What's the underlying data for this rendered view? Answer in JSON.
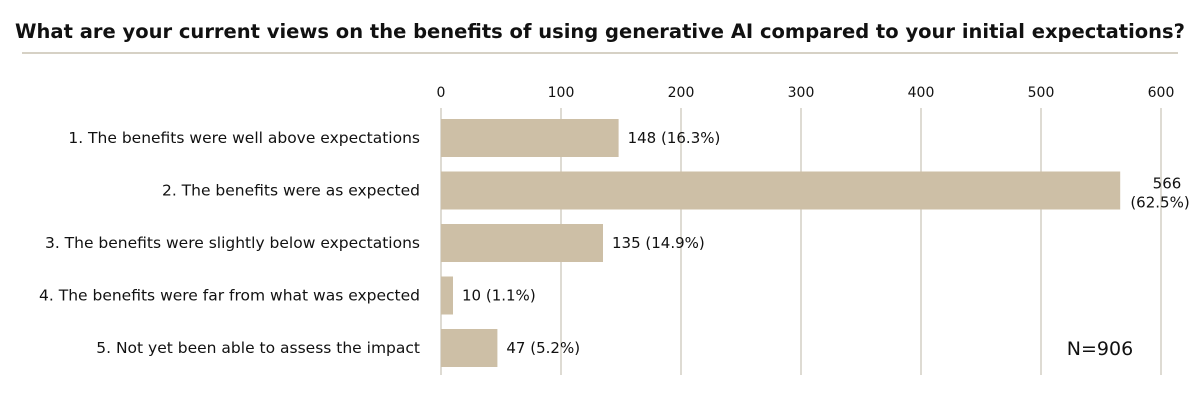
{
  "chart_data": {
    "type": "bar",
    "orientation": "horizontal",
    "title": "What are your current views on the benefits of using generative AI compared to your initial expectations?",
    "categories": [
      "1. The benefits were well above expectations",
      "2. The benefits were as expected",
      "3. The benefits were slightly below expectations",
      "4. The benefits were far from what was expected",
      "5. Not yet been able to assess the impact"
    ],
    "values": [
      148,
      566,
      135,
      10,
      47
    ],
    "value_labels": [
      "148 (16.3%)",
      "566 (62.5%)",
      "135 (14.9%)",
      "10 (1.1%)",
      "47 (5.2%)"
    ],
    "x_ticks": [
      0,
      100,
      200,
      300,
      400,
      500,
      600
    ],
    "xlim": [
      0,
      600
    ],
    "axis_position": "top",
    "grid": true,
    "annotation": "N=906",
    "colors": {
      "bar": "#cdbfa6",
      "grid": "#c9c3b6",
      "title_rule": "#c8c2b2",
      "text": "#111111"
    }
  }
}
